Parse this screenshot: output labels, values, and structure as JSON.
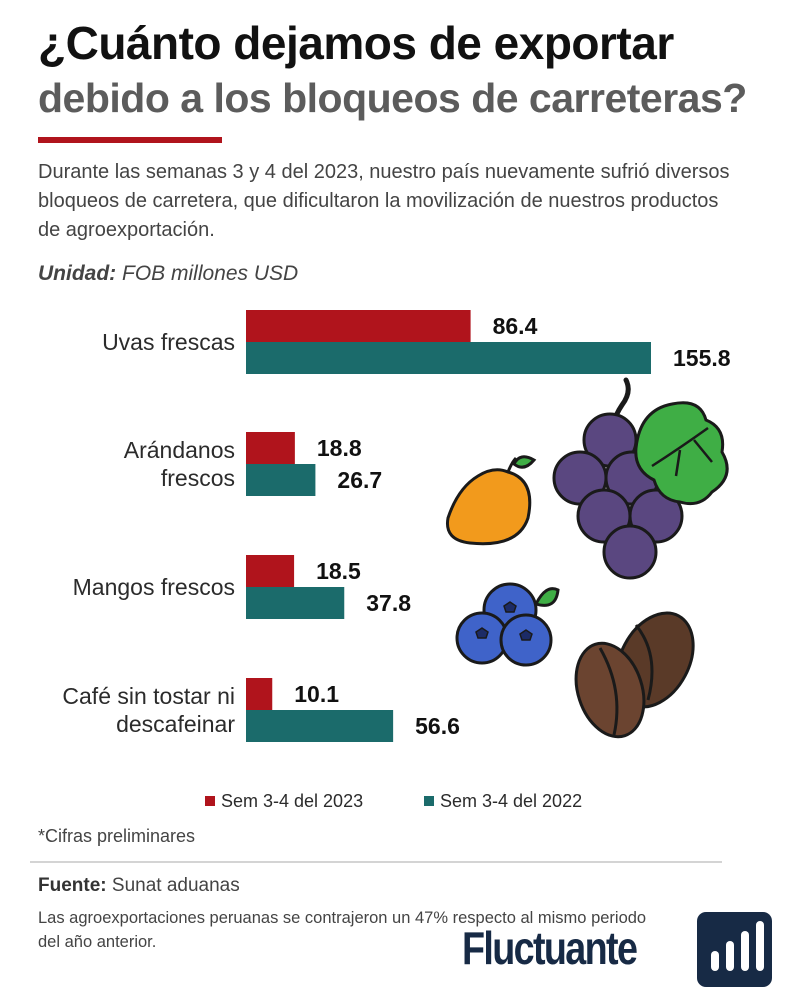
{
  "header": {
    "title_line1": "¿Cuánto dejamos de exportar",
    "title_line2": "debido a los bloqueos de carreteras?",
    "intro": "Durante las semanas 3 y 4 del 2023, nuestro país nuevamente sufrió diversos bloqueos de carretera, que dificultaron la movilización de nuestros productos de agroexportación.",
    "unit_label": "Unidad:",
    "unit_value": "FOB millones USD"
  },
  "colors": {
    "accent": "#b0141c",
    "series_2023": "#b0141c",
    "series_2022": "#1b6b6b",
    "brand": "#172a45"
  },
  "chart_data": {
    "type": "bar",
    "orientation": "horizontal",
    "categories": [
      [
        "Uvas frescas"
      ],
      [
        "Arándanos",
        "frescos"
      ],
      [
        "Mangos frescos"
      ],
      [
        "Café sin tostar ni",
        "descafeinar"
      ]
    ],
    "series": [
      {
        "name": "Sem 3-4 del 2023",
        "values": [
          86.4,
          18.8,
          18.5,
          10.1
        ],
        "labels": [
          "86.4",
          "18.8",
          "18.5",
          "10.1"
        ]
      },
      {
        "name": "Sem 3-4 del 2022",
        "values": [
          155.8,
          26.7,
          37.8,
          56.6
        ],
        "labels": [
          "155.8",
          "26.7",
          "37.8",
          "56.6"
        ]
      }
    ],
    "xlim": [
      0,
      155.8
    ],
    "grid": false,
    "legend_position": "bottom"
  },
  "illustrations": [
    "grapes-icon",
    "mango-icon",
    "blueberries-icon",
    "coffee-beans-icon"
  ],
  "footer": {
    "note": "*Cifras  preliminares",
    "source_label": "Fuente:",
    "source_value": "Sunat aduanas",
    "summary": "Las agroexportaciones peruanas se contrajeron un 47% respecto al mismo periodo del año anterior.",
    "brand_name": "Fluctuante"
  }
}
